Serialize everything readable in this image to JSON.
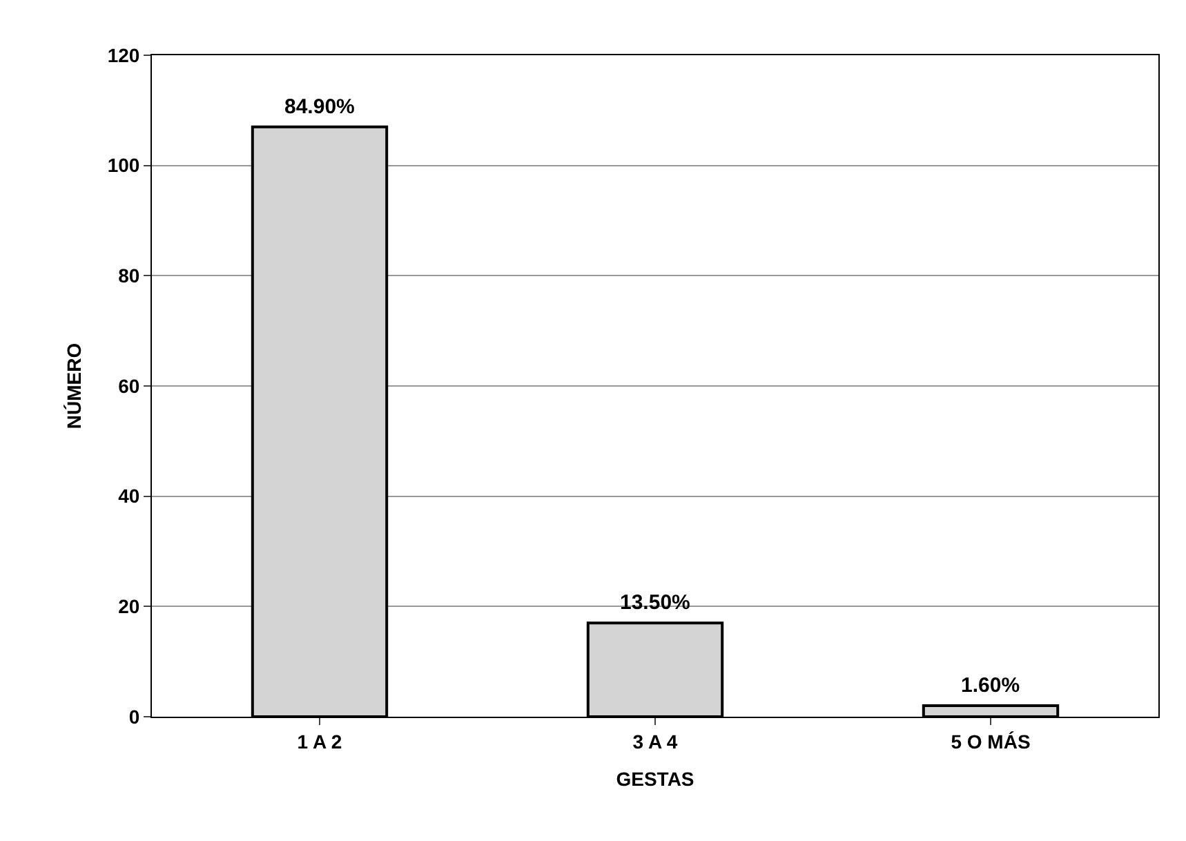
{
  "chart_data": {
    "type": "bar",
    "xlabel": "GESTAS",
    "ylabel": "NÚMERO",
    "categories": [
      "1 A 2",
      "3 A 4",
      "5 O MÁS"
    ],
    "values": [
      107,
      17,
      2
    ],
    "annotations": [
      {
        "text": "84.90%",
        "x": "1 A 2",
        "y": 107
      },
      {
        "text": "13.50%",
        "x": "3 A 4",
        "y": 17
      },
      {
        "text": "1.60%",
        "x": "5 O MÁS",
        "y": 2
      }
    ],
    "color": "#d4d4d4",
    "ylim": [
      0,
      120
    ],
    "yticks": [
      0,
      20,
      40,
      60,
      80,
      100,
      120
    ],
    "grid": "y"
  }
}
